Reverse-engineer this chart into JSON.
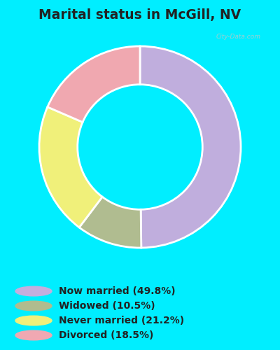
{
  "title": "Marital status in McGill, NV",
  "outer_bg_color": "#00eeff",
  "chart_bg_top": "#d8ede0",
  "chart_bg_bottom": "#c8e8d0",
  "slices": [
    49.8,
    10.5,
    21.2,
    18.5
  ],
  "colors": [
    "#c0aedd",
    "#b0bc90",
    "#f0f07a",
    "#f0a8b0"
  ],
  "labels": [
    "Now married (49.8%)",
    "Widowed (10.5%)",
    "Never married (21.2%)",
    "Divorced (18.5%)"
  ],
  "legend_colors": [
    "#c4aede",
    "#b0bc8e",
    "#f0f07a",
    "#f0a8b2"
  ],
  "watermark": "City-Data.com",
  "title_fontsize": 13.5,
  "legend_fontsize": 10
}
